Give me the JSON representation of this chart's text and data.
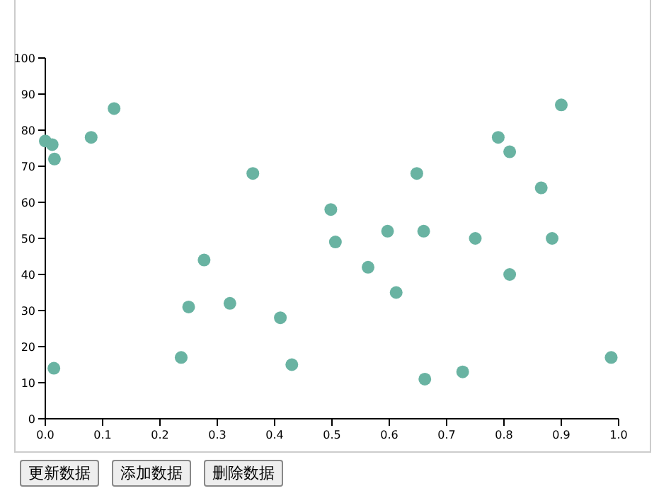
{
  "chart_data": {
    "type": "scatter",
    "color": "#69b3a2",
    "marker": "circle",
    "grid": false,
    "x": [
      0.0,
      0.012,
      0.016,
      0.015,
      0.08,
      0.12,
      0.237,
      0.25,
      0.277,
      0.322,
      0.362,
      0.41,
      0.43,
      0.498,
      0.506,
      0.563,
      0.597,
      0.612,
      0.648,
      0.66,
      0.662,
      0.728,
      0.75,
      0.79,
      0.81,
      0.81,
      0.865,
      0.884,
      0.9,
      0.987
    ],
    "values": [
      77,
      76,
      72,
      14,
      78,
      86,
      17,
      31,
      44,
      32,
      68,
      28,
      15,
      58,
      49,
      42,
      52,
      35,
      68,
      52,
      11,
      13,
      50,
      78,
      74,
      40,
      64,
      50,
      87,
      17
    ],
    "xlim": [
      0,
      1
    ],
    "xticks": [
      {
        "value": 0,
        "label": "0.0"
      },
      {
        "value": 0.1,
        "label": "0.1"
      },
      {
        "value": 0.2,
        "label": "0.2"
      },
      {
        "value": 0.3,
        "label": "0.3"
      },
      {
        "value": 0.4,
        "label": "0.4"
      },
      {
        "value": 0.5,
        "label": "0.5"
      },
      {
        "value": 0.6,
        "label": "0.6"
      },
      {
        "value": 0.7,
        "label": "0.7"
      },
      {
        "value": 0.8,
        "label": "0.8"
      },
      {
        "value": 0.9,
        "label": "0.9"
      },
      {
        "value": 1,
        "label": "1.0"
      }
    ],
    "ylim": [
      0,
      100
    ],
    "yticks": [
      0,
      10,
      20,
      30,
      40,
      50,
      60,
      70,
      80,
      90,
      100
    ],
    "annotations": [
      "更新数据",
      "添加数据",
      "删除数据"
    ]
  }
}
